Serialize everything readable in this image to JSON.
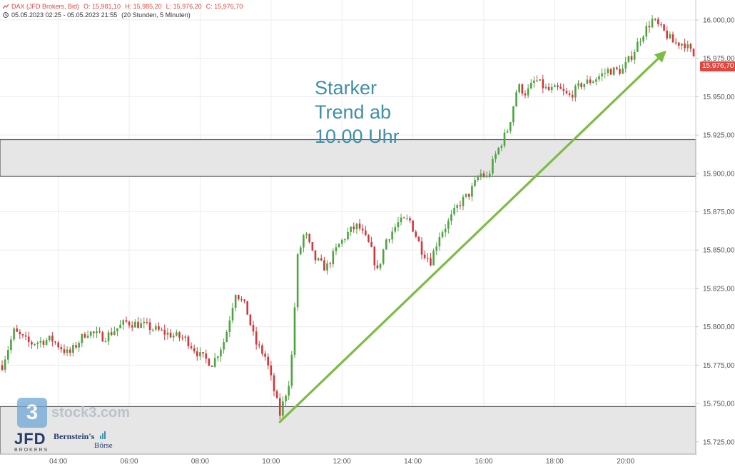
{
  "header": {
    "instrument": "DAX (JFD Brokers, Bid)",
    "open": "O: 15,981,10",
    "high": "H: 15,985,20",
    "low": "L: 15,976,20",
    "close": "C: 15,976,70",
    "range": "05.05.2023 02:25 - 05.05.2023 21:55",
    "interval": "(20 Stunden, 5 Minuten)"
  },
  "annotation": "Starker\nTrend ab\n10.00 Uhr",
  "last_price_label": "15.976,70",
  "watermark": {
    "badge": "3",
    "text": "stock3.com"
  },
  "logos": {
    "jfd": "JFD",
    "jfd_sub": "BROKERS",
    "bernstein_line1": "Bernstein's",
    "bernstein_line2": "Börse"
  },
  "colors": {
    "up": "#4ca43f",
    "down": "#d6353a",
    "arrow": "#7bbd42",
    "zone_fill": "#e6e6e6",
    "zone_border": "#555555",
    "annotation": "#3f8fa8"
  },
  "chart_data": {
    "type": "candlestick",
    "y_axis_side": "right",
    "ylim": [
      15717,
      16013
    ],
    "y_ticks": [
      {
        "value": 16000,
        "label": "16.000,00"
      },
      {
        "value": 15975,
        "label": "15.975,00"
      },
      {
        "value": 15950,
        "label": "15.950,00"
      },
      {
        "value": 15925,
        "label": "15.925,00"
      },
      {
        "value": 15900,
        "label": "15.900,00"
      },
      {
        "value": 15875,
        "label": "15.875,00"
      },
      {
        "value": 15850,
        "label": "15.850,00"
      },
      {
        "value": 15825,
        "label": "15.825,00"
      },
      {
        "value": 15800,
        "label": "15.800,00"
      },
      {
        "value": 15775,
        "label": "15.775,00"
      },
      {
        "value": 15750,
        "label": "15.750,00"
      },
      {
        "value": 15725,
        "label": "15.725,00"
      }
    ],
    "x_range_hours": [
      2.417,
      21.917
    ],
    "x_ticks": [
      {
        "hour": 4,
        "label": "04:00"
      },
      {
        "hour": 6,
        "label": "06:00"
      },
      {
        "hour": 8,
        "label": "08:00"
      },
      {
        "hour": 10,
        "label": "10:00"
      },
      {
        "hour": 12,
        "label": "12:00"
      },
      {
        "hour": 14,
        "label": "14:00"
      },
      {
        "hour": 16,
        "label": "16:00"
      },
      {
        "hour": 18,
        "label": "18:00"
      },
      {
        "hour": 20,
        "label": "20:00"
      }
    ],
    "zones": [
      {
        "low": 15898,
        "high": 15922
      },
      {
        "low": 15700,
        "high": 15748
      }
    ],
    "trend_arrow": {
      "from": {
        "hour": 10.25,
        "value": 15738
      },
      "to": {
        "hour": 21.15,
        "value": 15980
      }
    },
    "last_close": 15976.7,
    "closes_path": [
      {
        "hour": 2.42,
        "close": 15775
      },
      {
        "hour": 2.75,
        "close": 15797
      },
      {
        "hour": 3.2,
        "close": 15789
      },
      {
        "hour": 3.8,
        "close": 15792
      },
      {
        "hour": 4.3,
        "close": 15782
      },
      {
        "hour": 4.8,
        "close": 15797
      },
      {
        "hour": 5.3,
        "close": 15793
      },
      {
        "hour": 5.9,
        "close": 15803
      },
      {
        "hour": 6.4,
        "close": 15801
      },
      {
        "hour": 7.0,
        "close": 15796
      },
      {
        "hour": 7.6,
        "close": 15792
      },
      {
        "hour": 8.0,
        "close": 15781
      },
      {
        "hour": 8.35,
        "close": 15776
      },
      {
        "hour": 8.7,
        "close": 15792
      },
      {
        "hour": 9.0,
        "close": 15823
      },
      {
        "hour": 9.3,
        "close": 15812
      },
      {
        "hour": 9.55,
        "close": 15790
      },
      {
        "hour": 9.85,
        "close": 15780
      },
      {
        "hour": 10.25,
        "close": 15743
      },
      {
        "hour": 10.55,
        "close": 15768
      },
      {
        "hour": 10.75,
        "close": 15845
      },
      {
        "hour": 10.95,
        "close": 15862
      },
      {
        "hour": 11.2,
        "close": 15845
      },
      {
        "hour": 11.55,
        "close": 15838
      },
      {
        "hour": 11.9,
        "close": 15853
      },
      {
        "hour": 12.2,
        "close": 15862
      },
      {
        "hour": 12.45,
        "close": 15866
      },
      {
        "hour": 12.8,
        "close": 15852
      },
      {
        "hour": 13.0,
        "close": 15836
      },
      {
        "hour": 13.25,
        "close": 15857
      },
      {
        "hour": 13.6,
        "close": 15868
      },
      {
        "hour": 13.9,
        "close": 15870
      },
      {
        "hour": 14.25,
        "close": 15850
      },
      {
        "hour": 14.5,
        "close": 15843
      },
      {
        "hour": 14.75,
        "close": 15860
      },
      {
        "hour": 15.0,
        "close": 15868
      },
      {
        "hour": 15.3,
        "close": 15880
      },
      {
        "hour": 15.6,
        "close": 15887
      },
      {
        "hour": 15.9,
        "close": 15900
      },
      {
        "hour": 16.1,
        "close": 15897
      },
      {
        "hour": 16.35,
        "close": 15913
      },
      {
        "hour": 16.7,
        "close": 15930
      },
      {
        "hour": 16.95,
        "close": 15957
      },
      {
        "hour": 17.2,
        "close": 15952
      },
      {
        "hour": 17.45,
        "close": 15961
      },
      {
        "hour": 17.8,
        "close": 15954
      },
      {
        "hour": 18.1,
        "close": 15955
      },
      {
        "hour": 18.4,
        "close": 15950
      },
      {
        "hour": 18.75,
        "close": 15958
      },
      {
        "hour": 19.1,
        "close": 15961
      },
      {
        "hour": 19.5,
        "close": 15967
      },
      {
        "hour": 19.9,
        "close": 15967
      },
      {
        "hour": 20.2,
        "close": 15978
      },
      {
        "hour": 20.45,
        "close": 15990
      },
      {
        "hour": 20.75,
        "close": 16000
      },
      {
        "hour": 21.05,
        "close": 15993
      },
      {
        "hour": 21.35,
        "close": 15985
      },
      {
        "hour": 21.65,
        "close": 15985
      },
      {
        "hour": 21.917,
        "close": 15976.7
      }
    ]
  }
}
